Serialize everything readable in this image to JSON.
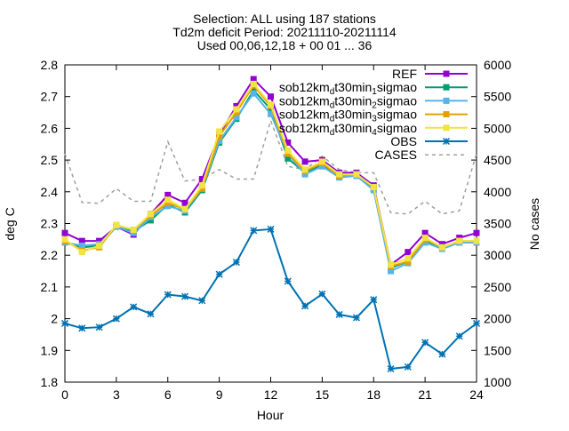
{
  "chart_data": {
    "type": "line",
    "title_lines": [
      "Selection: ALL using    187 stations",
      "Td2m deficit   Period: 20211110-20211114",
      "Used 00,06,12,18 + 00 01 ... 36"
    ],
    "xlabel": "Hour",
    "ylabel": "deg C",
    "y2label": "No cases",
    "xlim": [
      0,
      24
    ],
    "ylim": [
      1.8,
      2.8
    ],
    "y2lim": [
      1000,
      6000
    ],
    "xticks": [
      "0",
      "3",
      "6",
      "9",
      "12",
      "15",
      "18",
      "21",
      "24"
    ],
    "yticks": [
      "1.8",
      "1.9",
      "2",
      "2.1",
      "2.2",
      "2.3",
      "2.4",
      "2.5",
      "2.6",
      "2.7",
      "2.8"
    ],
    "y2ticks": [
      "1000",
      "1500",
      "2000",
      "2500",
      "3000",
      "3500",
      "4000",
      "4500",
      "5000",
      "5500",
      "6000"
    ],
    "grid": false,
    "legend_position": "top-right",
    "x": [
      0,
      1,
      2,
      3,
      4,
      5,
      6,
      7,
      8,
      9,
      10,
      11,
      12,
      13,
      14,
      15,
      16,
      17,
      18,
      19,
      20,
      21,
      22,
      23,
      24
    ],
    "series": [
      {
        "name": "REF",
        "name_parts": [
          [
            "REF",
            "n"
          ]
        ],
        "color": "#9400d3",
        "marker": "square",
        "axis": "y",
        "values": [
          2.27,
          2.245,
          2.245,
          2.29,
          2.265,
          2.33,
          2.39,
          2.365,
          2.44,
          2.58,
          2.67,
          2.755,
          2.7,
          2.555,
          2.495,
          2.5,
          2.46,
          2.46,
          2.42,
          2.17,
          2.21,
          2.27,
          2.235,
          2.255,
          2.27
        ]
      },
      {
        "name": "sob12km_dt30min_1sigmao",
        "name_parts": [
          [
            "sob12km",
            "n"
          ],
          [
            "d",
            "sub"
          ],
          [
            "t30min",
            "n"
          ],
          [
            "1",
            "sub"
          ],
          [
            "sigmao",
            "n"
          ]
        ],
        "color": "#009e73",
        "marker": "square",
        "axis": "y",
        "values": [
          2.24,
          2.225,
          2.23,
          2.29,
          2.275,
          2.31,
          2.36,
          2.335,
          2.405,
          2.555,
          2.63,
          2.72,
          2.66,
          2.505,
          2.46,
          2.485,
          2.45,
          2.45,
          2.41,
          2.16,
          2.18,
          2.245,
          2.225,
          2.24,
          2.24
        ]
      },
      {
        "name": "sob12km_dt30min_2sigmao",
        "name_parts": [
          [
            "sob12km",
            "n"
          ],
          [
            "d",
            "sub"
          ],
          [
            "t30min",
            "n"
          ],
          [
            "2",
            "sub"
          ],
          [
            "sigmao",
            "n"
          ]
        ],
        "color": "#56b4e9",
        "marker": "square",
        "axis": "y",
        "values": [
          2.24,
          2.23,
          2.235,
          2.29,
          2.27,
          2.32,
          2.355,
          2.34,
          2.41,
          2.56,
          2.635,
          2.71,
          2.645,
          2.52,
          2.455,
          2.48,
          2.445,
          2.45,
          2.405,
          2.15,
          2.175,
          2.24,
          2.22,
          2.24,
          2.24
        ]
      },
      {
        "name": "sob12km_dt30min_3sigmao",
        "name_parts": [
          [
            "sob12km",
            "n"
          ],
          [
            "d",
            "sub"
          ],
          [
            "t30min",
            "n"
          ],
          [
            "3",
            "sub"
          ],
          [
            "sigmao",
            "n"
          ]
        ],
        "color": "#e69f00",
        "marker": "square",
        "axis": "y",
        "values": [
          2.245,
          2.215,
          2.225,
          2.295,
          2.28,
          2.325,
          2.365,
          2.345,
          2.41,
          2.575,
          2.65,
          2.735,
          2.67,
          2.52,
          2.465,
          2.49,
          2.45,
          2.455,
          2.415,
          2.165,
          2.18,
          2.25,
          2.225,
          2.245,
          2.245
        ]
      },
      {
        "name": "sob12km_dt30min_4sigmao",
        "name_parts": [
          [
            "sob12km",
            "n"
          ],
          [
            "d",
            "sub"
          ],
          [
            "t30min",
            "n"
          ],
          [
            "4",
            "sub"
          ],
          [
            "sigmao",
            "n"
          ]
        ],
        "color": "#f0e442",
        "marker": "square",
        "axis": "y",
        "values": [
          2.25,
          2.21,
          2.23,
          2.295,
          2.28,
          2.33,
          2.375,
          2.345,
          2.42,
          2.59,
          2.66,
          2.74,
          2.675,
          2.53,
          2.47,
          2.495,
          2.455,
          2.455,
          2.415,
          2.17,
          2.19,
          2.255,
          2.225,
          2.245,
          2.245
        ]
      },
      {
        "name": "OBS",
        "name_parts": [
          [
            "OBS",
            "n"
          ]
        ],
        "color": "#0072b2",
        "marker": "asterisk",
        "axis": "y",
        "values": [
          1.985,
          1.97,
          1.973,
          2.0,
          2.037,
          2.015,
          2.076,
          2.07,
          2.057,
          2.14,
          2.178,
          2.278,
          2.282,
          2.118,
          2.04,
          2.078,
          2.013,
          2.003,
          2.06,
          1.842,
          1.848,
          1.925,
          1.888,
          1.945,
          1.985
        ]
      },
      {
        "name": "CASES",
        "name_parts": [
          [
            "CASES",
            "n"
          ]
        ],
        "color": "#a0a0a0",
        "marker": "none",
        "dash": true,
        "axis": "y2",
        "values": [
          4600,
          3830,
          3820,
          4050,
          3850,
          3850,
          4790,
          4170,
          4200,
          4350,
          4200,
          4200,
          5120,
          4400,
          4350,
          4560,
          4350,
          4300,
          4300,
          3670,
          3650,
          3850,
          3650,
          3700,
          4600
        ]
      }
    ]
  }
}
